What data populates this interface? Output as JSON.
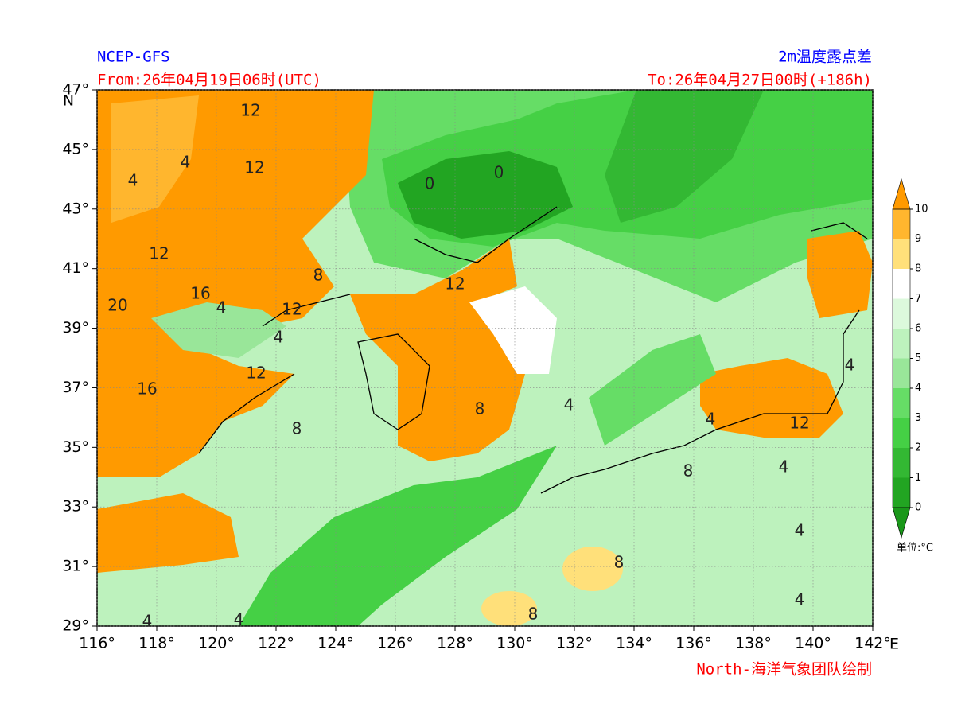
{
  "header": {
    "source": "NCEP-GFS",
    "from": "From:26年04月19日06时(UTC)",
    "variable": "2m温度露点差",
    "to": "To:26年04月27日00时(+186h)"
  },
  "footer": {
    "credit": "North-海洋气象团队绘制"
  },
  "map": {
    "lon_ticks": [
      {
        "value": 116,
        "label": "116°"
      },
      {
        "value": 118,
        "label": "118°"
      },
      {
        "value": 120,
        "label": "120°"
      },
      {
        "value": 122,
        "label": "122°"
      },
      {
        "value": 124,
        "label": "124°"
      },
      {
        "value": 126,
        "label": "126°"
      },
      {
        "value": 128,
        "label": "128°"
      },
      {
        "value": 130,
        "label": "130°"
      },
      {
        "value": 132,
        "label": "132°"
      },
      {
        "value": 134,
        "label": "134°"
      },
      {
        "value": 136,
        "label": "136°"
      },
      {
        "value": 138,
        "label": "138°"
      },
      {
        "value": 140,
        "label": "140°"
      },
      {
        "value": 142,
        "label": "142°"
      }
    ],
    "lat_ticks": [
      {
        "value": 29,
        "label": "29°"
      },
      {
        "value": 31,
        "label": "31°"
      },
      {
        "value": 33,
        "label": "33°"
      },
      {
        "value": 35,
        "label": "35°"
      },
      {
        "value": 37,
        "label": "37°"
      },
      {
        "value": 39,
        "label": "39°"
      },
      {
        "value": 41,
        "label": "41°"
      },
      {
        "value": 43,
        "label": "43°"
      },
      {
        "value": 45,
        "label": "45°"
      },
      {
        "value": 47,
        "label": "47°"
      }
    ],
    "lon_unit": "E",
    "lat_unit": "N",
    "lonlim": [
      116,
      142
    ],
    "latlim": [
      29,
      47
    ],
    "grid": true,
    "contour_labels": [
      12,
      12,
      12,
      16,
      20,
      16,
      12,
      12,
      12,
      12,
      4,
      4,
      4,
      4,
      0,
      0,
      8,
      8,
      8,
      8,
      8,
      8,
      4,
      4,
      4,
      4,
      4,
      4,
      4,
      4
    ],
    "colorbar": {
      "levels": [
        0,
        1,
        2,
        3,
        4,
        5,
        6,
        7,
        8,
        9,
        10
      ],
      "colors": [
        "#22a522",
        "#33b833",
        "#45d045",
        "#66dd66",
        "#99e699",
        "#bdf2bd",
        "#dcf9dc",
        "#ffffff",
        "#ffe07a",
        "#ffb62e"
      ],
      "under_color": "#1a981a",
      "over_color": "#ff9a00",
      "unit": "单位:°C"
    }
  }
}
